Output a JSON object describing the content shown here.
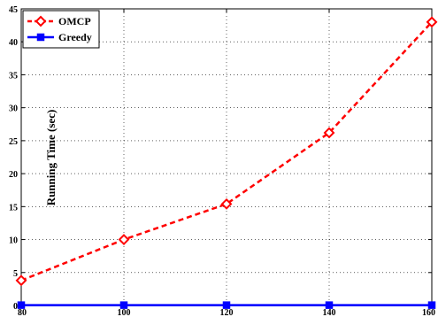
{
  "chart_data": {
    "type": "line",
    "x": [
      80,
      100,
      120,
      140,
      160
    ],
    "xlim": [
      80,
      160
    ],
    "ylim": [
      0,
      45
    ],
    "xticks": [
      80,
      100,
      120,
      140,
      160
    ],
    "yticks": [
      0,
      5,
      10,
      15,
      20,
      25,
      30,
      35,
      40,
      45
    ],
    "xtick_labels": [
      "80",
      "100",
      "120",
      "140",
      "160"
    ],
    "ytick_labels": [
      "0",
      "5",
      "10",
      "15",
      "20",
      "25",
      "30",
      "35",
      "40",
      "45"
    ],
    "xlabel": "",
    "ylabel": "Running Time (sec)",
    "grid": true,
    "legend_position": "top-left",
    "series": [
      {
        "name": "OMCP",
        "values": [
          3.8,
          10.0,
          15.4,
          26.2,
          43.0
        ],
        "color": "#ff0000",
        "line_style": "dashed",
        "marker": "diamond"
      },
      {
        "name": "Greedy",
        "values": [
          0.05,
          0.05,
          0.05,
          0.05,
          0.05
        ],
        "color": "#0000ff",
        "line_style": "solid",
        "marker": "square"
      }
    ]
  }
}
